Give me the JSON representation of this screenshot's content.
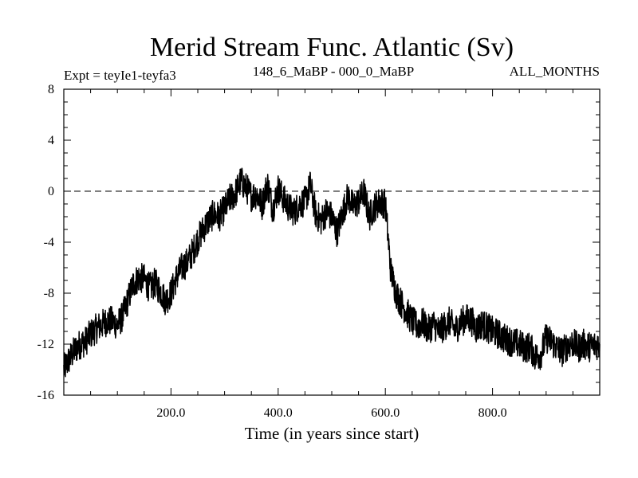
{
  "chart_data": {
    "type": "line",
    "title": "Merid Stream Func. Atlantic (Sv)",
    "subtitle_left": "Expt = teyIe1-teyfa3",
    "subtitle_center": "148_6_MaBP - 000_0_MaBP",
    "subtitle_right": "ALL_MONTHS",
    "xlabel": "Time (in years since start)",
    "ylabel": "",
    "xlim": [
      0,
      1000
    ],
    "ylim": [
      -16,
      8
    ],
    "x_tick_labels": [
      "200.0",
      "400.0",
      "600.0",
      "800.0"
    ],
    "x_tick_values": [
      200,
      400,
      600,
      800
    ],
    "y_tick_labels": [
      "8",
      "4",
      "0",
      "-4",
      "-8",
      "-12",
      "-16"
    ],
    "y_tick_values": [
      8,
      4,
      0,
      -4,
      -8,
      -12,
      -16
    ],
    "reference_line": {
      "y": 0,
      "style": "dashed"
    },
    "series": [
      {
        "name": "Merid Stream Func. Atlantic",
        "x": [
          0,
          10,
          20,
          30,
          40,
          50,
          60,
          70,
          80,
          90,
          100,
          110,
          120,
          130,
          140,
          150,
          160,
          170,
          180,
          190,
          200,
          210,
          220,
          230,
          240,
          250,
          260,
          270,
          280,
          290,
          300,
          310,
          320,
          330,
          340,
          350,
          360,
          370,
          380,
          390,
          400,
          410,
          420,
          430,
          440,
          450,
          460,
          470,
          480,
          490,
          500,
          510,
          520,
          530,
          540,
          550,
          560,
          570,
          580,
          590,
          600,
          610,
          620,
          630,
          640,
          650,
          660,
          670,
          680,
          690,
          700,
          710,
          720,
          730,
          740,
          750,
          760,
          770,
          780,
          790,
          800,
          810,
          820,
          830,
          840,
          850,
          860,
          870,
          880,
          890,
          900,
          910,
          920,
          930,
          940,
          950,
          960,
          970,
          980,
          990,
          1000
        ],
        "values": [
          -14.0,
          -13.2,
          -12.5,
          -12.0,
          -11.8,
          -11.2,
          -10.8,
          -10.5,
          -10.2,
          -10.2,
          -10.5,
          -9.8,
          -8.5,
          -7.2,
          -6.8,
          -6.9,
          -7.6,
          -7.2,
          -7.8,
          -8.6,
          -8.0,
          -6.8,
          -6.0,
          -5.6,
          -4.8,
          -3.8,
          -3.0,
          -2.3,
          -1.8,
          -2.0,
          -1.4,
          -0.6,
          -0.2,
          0.8,
          0.3,
          -0.4,
          -0.2,
          -1.1,
          0.6,
          -1.4,
          0.2,
          -0.6,
          -1.3,
          -1.6,
          -1.0,
          -0.8,
          0.5,
          -1.8,
          -2.3,
          -1.6,
          -2.0,
          -3.2,
          -1.7,
          -0.4,
          -1.2,
          -0.8,
          -0.1,
          -2.0,
          -1.2,
          -0.8,
          -1.0,
          -6.2,
          -8.0,
          -8.8,
          -9.5,
          -10.2,
          -10.6,
          -10.3,
          -10.9,
          -10.4,
          -11.0,
          -10.6,
          -10.2,
          -10.9,
          -10.3,
          -10.0,
          -10.1,
          -10.8,
          -10.4,
          -10.7,
          -11.0,
          -11.2,
          -11.5,
          -11.7,
          -11.9,
          -12.0,
          -12.3,
          -12.2,
          -13.0,
          -12.8,
          -11.5,
          -11.8,
          -12.3,
          -12.6,
          -12.1,
          -11.9,
          -12.3,
          -12.0,
          -12.2,
          -12.1,
          -12.0
        ]
      }
    ]
  }
}
